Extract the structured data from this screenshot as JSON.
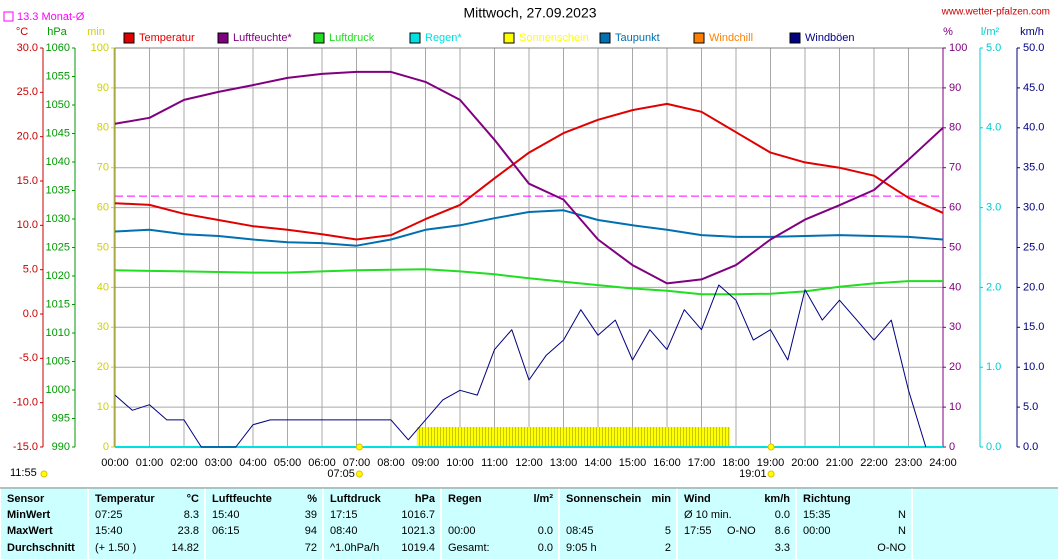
{
  "chart_data": {
    "type": "line",
    "title": "Mittwoch, 27.09.2023",
    "source": "www.wetter-pfalzen.com",
    "xlim": [
      0,
      24
    ],
    "xticks": [
      {
        "value": 0,
        "label": "00:00"
      },
      {
        "value": 1,
        "label": "01:00"
      },
      {
        "value": 2,
        "label": "02:00"
      },
      {
        "value": 3,
        "label": "03:00"
      },
      {
        "value": 4,
        "label": "04:00"
      },
      {
        "value": 5,
        "label": "05:00"
      },
      {
        "value": 6,
        "label": "06:00"
      },
      {
        "value": 7,
        "label": "07:00"
      },
      {
        "value": 8,
        "label": "08:00"
      },
      {
        "value": 9,
        "label": "09:00"
      },
      {
        "value": 10,
        "label": "10:00"
      },
      {
        "value": 11,
        "label": "11:00"
      },
      {
        "value": 12,
        "label": "12:00"
      },
      {
        "value": 13,
        "label": "13:00"
      },
      {
        "value": 14,
        "label": "14:00"
      },
      {
        "value": 15,
        "label": "15:00"
      },
      {
        "value": 16,
        "label": "16:00"
      },
      {
        "value": 17,
        "label": "17:00"
      },
      {
        "value": 18,
        "label": "18:00"
      },
      {
        "value": 19,
        "label": "19:00"
      },
      {
        "value": 20,
        "label": "20:00"
      },
      {
        "value": 21,
        "label": "21:00"
      },
      {
        "value": 22,
        "label": "22:00"
      },
      {
        "value": 23,
        "label": "23:00"
      },
      {
        "value": 24,
        "label": "24:00"
      }
    ],
    "grid": true,
    "axes": [
      {
        "unit": "°C",
        "color": "#cc0000",
        "lim": [
          -15,
          30
        ],
        "ticks": [
          {
            "value": 30,
            "label": "30.0"
          },
          {
            "value": 25,
            "label": "25.0"
          },
          {
            "value": 20,
            "label": "20.0"
          },
          {
            "value": 15,
            "label": "15.0"
          },
          {
            "value": 10,
            "label": "10.0"
          },
          {
            "value": 5,
            "label": "5.0"
          },
          {
            "value": 0,
            "label": "0.0"
          },
          {
            "value": -5,
            "label": "-5.0"
          },
          {
            "value": -10,
            "label": "-10.0"
          },
          {
            "value": -15,
            "label": "-15.0"
          }
        ]
      },
      {
        "unit": "hPa",
        "color": "#009900",
        "lim": [
          990,
          1060
        ],
        "ticks": [
          1060,
          1055,
          1050,
          1045,
          1040,
          1035,
          1030,
          1025,
          1020,
          1015,
          1010,
          1005,
          1000,
          995,
          990
        ]
      },
      {
        "unit": "min",
        "color": "#d0d000",
        "lim": [
          0,
          100
        ],
        "ticks": [
          100,
          90,
          80,
          70,
          60,
          50,
          40,
          30,
          20,
          10,
          0
        ]
      },
      {
        "unit": "%",
        "color": "#800080",
        "lim": [
          0,
          100
        ],
        "ticks": [
          100,
          90,
          80,
          70,
          60,
          50,
          40,
          30,
          20,
          10,
          0
        ]
      },
      {
        "unit": "l/m²",
        "color": "#00cccc",
        "lim": [
          0,
          5
        ],
        "ticks": [
          {
            "value": 5,
            "label": "5.0"
          },
          {
            "value": 4,
            "label": "4.0"
          },
          {
            "value": 3,
            "label": "3.0"
          },
          {
            "value": 2,
            "label": "2.0"
          },
          {
            "value": 1,
            "label": "1.0"
          },
          {
            "value": 0,
            "label": "0.0"
          }
        ]
      },
      {
        "unit": "km/h",
        "color": "#000080",
        "lim": [
          0,
          50
        ],
        "ticks": [
          {
            "value": 50,
            "label": "50.0"
          },
          {
            "value": 45,
            "label": "45.0"
          },
          {
            "value": 40,
            "label": "40.0"
          },
          {
            "value": 35,
            "label": "35.0"
          },
          {
            "value": 30,
            "label": "30.0"
          },
          {
            "value": 25,
            "label": "25.0"
          },
          {
            "value": 20,
            "label": "20.0"
          },
          {
            "value": 15,
            "label": "15.0"
          },
          {
            "value": 10,
            "label": "10.0"
          },
          {
            "value": 5,
            "label": "5.0"
          },
          {
            "value": 0,
            "label": "0.0"
          }
        ]
      }
    ],
    "reference": {
      "label": "13.3 Monat-Ø",
      "value": 13.3,
      "axis": "°C",
      "color": "#ff00ff"
    },
    "series": [
      {
        "name": "Temperatur",
        "color": "#e00000",
        "axis": "°C",
        "x": [
          0,
          1,
          2,
          3,
          4,
          5,
          6,
          7,
          8,
          9,
          10,
          11,
          12,
          13,
          14,
          15,
          16,
          17,
          18,
          19,
          20,
          21,
          22,
          23,
          24
        ],
        "values": [
          12.5,
          12.3,
          11.3,
          10.6,
          9.9,
          9.5,
          9.0,
          8.4,
          8.9,
          10.7,
          12.3,
          15.3,
          18.2,
          20.4,
          21.9,
          23.0,
          23.7,
          22.8,
          20.5,
          18.2,
          17.1,
          16.5,
          15.6,
          13.1,
          11.4
        ]
      },
      {
        "name": "Luftfeuchte*",
        "color": "#800080",
        "axis": "%",
        "x": [
          0,
          1,
          2,
          3,
          4,
          5,
          6,
          7,
          8,
          9,
          10,
          11,
          12,
          13,
          14,
          15,
          16,
          17,
          18,
          19,
          20,
          21,
          22,
          23,
          24
        ],
        "values": [
          81,
          82.5,
          87,
          89,
          90.7,
          92.5,
          93.5,
          94,
          94,
          91.5,
          87,
          77,
          66,
          62,
          52,
          45.6,
          41,
          42,
          45.6,
          52,
          57,
          60.6,
          64.4,
          72,
          80
        ]
      },
      {
        "name": "Luftdruck",
        "color": "#22dd22",
        "axis": "hPa",
        "x": [
          0,
          1,
          2,
          3,
          4,
          5,
          6,
          7,
          8,
          9,
          10,
          11,
          12,
          13,
          14,
          15,
          16,
          17,
          18,
          19,
          20,
          21,
          22,
          23,
          24
        ],
        "values": [
          1021.0,
          1020.9,
          1020.8,
          1020.7,
          1020.6,
          1020.6,
          1020.8,
          1021.0,
          1021.1,
          1021.2,
          1020.8,
          1020.3,
          1019.6,
          1019.0,
          1018.4,
          1017.8,
          1017.4,
          1016.8,
          1016.8,
          1016.9,
          1017.3,
          1018.1,
          1018.7,
          1019.1,
          1019.1
        ]
      },
      {
        "name": "Regen*",
        "color": "#00e0e0",
        "axis": "l/m²",
        "x": [
          0,
          24
        ],
        "values": [
          0,
          0
        ]
      },
      {
        "name": "Sonnenschein",
        "color": "#ffff00",
        "axis": "min",
        "style": "bars",
        "x": [
          8.75,
          17.83
        ],
        "values": [
          5,
          5
        ]
      },
      {
        "name": "Taupunkt",
        "color": "#0070b0",
        "axis": "°C",
        "x": [
          0,
          1,
          2,
          3,
          4,
          5,
          6,
          7,
          8,
          9,
          10,
          11,
          12,
          13,
          14,
          15,
          16,
          17,
          18,
          19,
          20,
          21,
          22,
          23,
          24
        ],
        "values": [
          9.3,
          9.5,
          9.0,
          8.8,
          8.4,
          8.1,
          8.0,
          7.7,
          8.4,
          9.5,
          10.0,
          10.8,
          11.5,
          11.7,
          10.6,
          10.0,
          9.5,
          8.9,
          8.7,
          8.7,
          8.8,
          8.9,
          8.8,
          8.7,
          8.4
        ]
      },
      {
        "name": "Windchill",
        "color": "#ff8000",
        "axis": "°C"
      },
      {
        "name": "Windböen",
        "color": "#000080",
        "axis": "km/h",
        "x": [
          0,
          0.5,
          1,
          1.5,
          2,
          2.5,
          3,
          3.5,
          4,
          4.5,
          5,
          5.5,
          6,
          6.5,
          7,
          7.5,
          8,
          8.5,
          9,
          9.5,
          10,
          10.5,
          11,
          11.5,
          12,
          12.5,
          13,
          13.5,
          14,
          14.5,
          15,
          15.5,
          16,
          16.5,
          17,
          17.5,
          18,
          18.5,
          19,
          19.5,
          20,
          20.5,
          21,
          21.5,
          22,
          22.5,
          23,
          23.5,
          24
        ],
        "values": [
          6.5,
          4.6,
          5.3,
          3.4,
          3.4,
          0,
          0,
          0,
          2.8,
          3.4,
          3.4,
          3.4,
          3.4,
          3.4,
          3.4,
          3.4,
          3.4,
          0.9,
          3.4,
          5.9,
          7.1,
          6.5,
          12.2,
          14.7,
          8.4,
          11.5,
          13.4,
          17.2,
          14.0,
          15.9,
          10.9,
          14.7,
          12.2,
          17.2,
          14.7,
          20.3,
          18.4,
          13.4,
          14.7,
          10.9,
          19.7,
          15.9,
          18.4,
          15.9,
          13.4,
          15.9,
          7.1,
          0,
          null
        ]
      }
    ],
    "markers": [
      {
        "label": "11:55"
      },
      {
        "label": "07:05",
        "x": 7.083
      },
      {
        "label": "19:01",
        "x": 19.017
      }
    ]
  },
  "table": {
    "columns": [
      {
        "name": "Sensor"
      },
      {
        "name": "Temperatur",
        "unit": "°C"
      },
      {
        "name": "Luftfeuchte",
        "unit": "%"
      },
      {
        "name": "Luftdruck",
        "unit": "hPa"
      },
      {
        "name": "Regen",
        "unit": "l/m²"
      },
      {
        "name": "Sonnenschein",
        "unit": "min"
      },
      {
        "name": "Wind",
        "unit": "km/h"
      },
      {
        "name": "Richtung"
      }
    ],
    "rows": [
      {
        "label": "MinWert",
        "cells": [
          {
            "time": "07:25",
            "value": "8.3"
          },
          {
            "time": "15:40",
            "value": "39"
          },
          {
            "time": "17:15",
            "value": "1016.7"
          },
          {},
          {},
          {
            "time": "Ø 10 min.",
            "value": "0.0"
          },
          {
            "time": "15:35",
            "value": "N"
          }
        ]
      },
      {
        "label": "MaxWert",
        "cells": [
          {
            "time": "15:40",
            "value": "23.8"
          },
          {
            "time": "06:15",
            "value": "94"
          },
          {
            "time": "08:40",
            "value": "1021.3"
          },
          {
            "time": "00:00",
            "value": "0.0"
          },
          {
            "time": "08:45",
            "value": "5"
          },
          {
            "time": "17:55",
            "dir": "O-NO",
            "value": "8.6"
          },
          {
            "time": "00:00",
            "value": "N"
          }
        ]
      },
      {
        "label": "Durchschnitt",
        "cells": [
          {
            "time": "(+ 1.50 )",
            "value": "14.82"
          },
          {
            "value": "72"
          },
          {
            "time": "^1.0hPa/h",
            "value": "1019.4"
          },
          {
            "time": "Gesamt:",
            "value": "0.0"
          },
          {
            "time": "9:05 h",
            "value": "2"
          },
          {
            "value": "3.3"
          },
          {
            "value": "O-NO"
          }
        ]
      }
    ]
  }
}
